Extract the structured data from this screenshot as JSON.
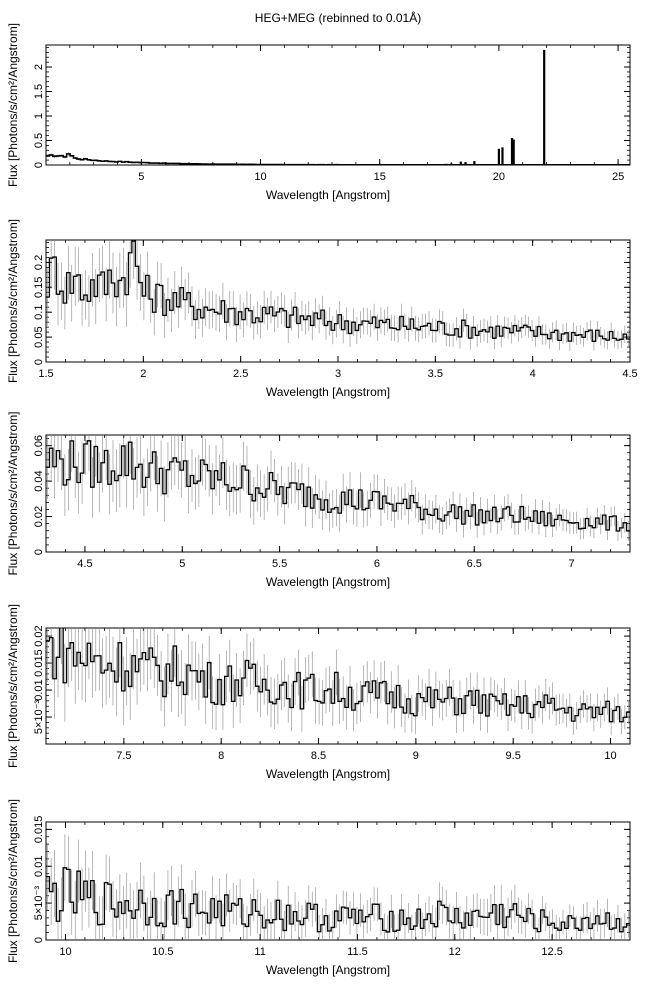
{
  "figure": {
    "title": "HEG+MEG (rebinned to 0.01Å)"
  },
  "chart_data": [
    {
      "type": "line",
      "xlabel": "Wavelength [Angstrom]",
      "ylabel": "Flux [Photons/s/cm²/Angstrom]",
      "xlim": [
        1.0,
        25.5
      ],
      "ylim": [
        0,
        2.45
      ],
      "xticks": [
        5,
        10,
        15,
        20,
        25
      ],
      "xtick_labels": [
        "5",
        "10",
        "15",
        "20",
        "25"
      ],
      "yticks": [
        0,
        0.5,
        1,
        1.5,
        2
      ],
      "ytick_labels": [
        "0",
        "0.5",
        "1",
        "1.5",
        "2"
      ],
      "series": [
        {
          "x": [
            1.1,
            1.3,
            1.5,
            1.6,
            1.8,
            1.95,
            2.2,
            2.5,
            3.0,
            3.5,
            4.0,
            5.0,
            6.0,
            7.0,
            8.0,
            10.0,
            12.0,
            15.0,
            18.0,
            19.0,
            20.0,
            21.0,
            22.0,
            24.0,
            25.5
          ],
          "y": [
            0.17,
            0.2,
            0.19,
            0.17,
            0.18,
            0.24,
            0.14,
            0.12,
            0.1,
            0.08,
            0.07,
            0.05,
            0.035,
            0.025,
            0.018,
            0.01,
            0.006,
            0.004,
            0.005,
            0.005,
            0.004,
            0.005,
            0.004,
            0.004,
            0.004
          ]
        }
      ],
      "lines": [
        {
          "x": 18.0,
          "y": 0.03
        },
        {
          "x": 18.4,
          "y": 0.07
        },
        {
          "x": 18.6,
          "y": 0.06
        },
        {
          "x": 18.97,
          "y": 0.08
        },
        {
          "x": 20.0,
          "y": 0.33
        },
        {
          "x": 20.15,
          "y": 0.36
        },
        {
          "x": 20.55,
          "y": 0.55
        },
        {
          "x": 20.62,
          "y": 0.52
        },
        {
          "x": 21.9,
          "y": 2.35
        }
      ]
    },
    {
      "type": "line",
      "xlabel": "Wavelength [Angstrom]",
      "ylabel": "Flux [Photons/s/cm²/Angstrom]",
      "xlim": [
        1.5,
        4.5
      ],
      "ylim": [
        0,
        0.245
      ],
      "xticks": [
        1.5,
        2,
        2.5,
        3,
        3.5,
        4,
        4.5
      ],
      "xtick_labels": [
        "1.5",
        "2",
        "2.5",
        "3",
        "3.5",
        "4",
        "4.5"
      ],
      "yticks": [
        0,
        0.05,
        0.1,
        0.15,
        0.2
      ],
      "ytick_labels": [
        "0",
        "0.05",
        "0.1",
        "0.15",
        "0.2"
      ],
      "series": [
        {
          "x": [
            1.5,
            1.55,
            1.6,
            1.65,
            1.7,
            1.75,
            1.8,
            1.85,
            1.88,
            1.92,
            1.95,
            2.0,
            2.1,
            2.2,
            2.3,
            2.5,
            2.75,
            3.0,
            3.25,
            3.5,
            3.75,
            4.0,
            4.25,
            4.5
          ],
          "y": [
            0.16,
            0.19,
            0.15,
            0.17,
            0.14,
            0.16,
            0.15,
            0.18,
            0.16,
            0.19,
            0.22,
            0.14,
            0.13,
            0.12,
            0.11,
            0.1,
            0.09,
            0.08,
            0.075,
            0.07,
            0.065,
            0.06,
            0.055,
            0.05
          ]
        }
      ]
    },
    {
      "type": "line",
      "xlabel": "Wavelength [Angstrom]",
      "ylabel": "Flux [Photons/s/cm²/Angstrom]",
      "xlim": [
        4.3,
        7.3
      ],
      "ylim": [
        0,
        0.066
      ],
      "xticks": [
        4.5,
        5,
        5.5,
        6,
        6.5,
        7
      ],
      "xtick_labels": [
        "4.5",
        "5",
        "5.5",
        "6",
        "6.5",
        "7"
      ],
      "yticks": [
        0,
        0.02,
        0.04,
        0.06
      ],
      "ytick_labels": [
        "0",
        "0.02",
        "0.04",
        "0.06"
      ],
      "series": [
        {
          "x": [
            4.3,
            4.4,
            4.5,
            4.6,
            4.7,
            4.8,
            4.9,
            5.0,
            5.1,
            5.2,
            5.3,
            5.4,
            5.5,
            5.6,
            5.7,
            5.8,
            5.9,
            6.0,
            6.1,
            6.2,
            6.3,
            6.4,
            6.5,
            6.6,
            6.7,
            6.8,
            6.9,
            7.0,
            7.1,
            7.2,
            7.3
          ],
          "y": [
            0.052,
            0.05,
            0.05,
            0.048,
            0.053,
            0.047,
            0.045,
            0.044,
            0.042,
            0.041,
            0.04,
            0.038,
            0.034,
            0.033,
            0.032,
            0.03,
            0.029,
            0.028,
            0.027,
            0.025,
            0.023,
            0.022,
            0.021,
            0.02,
            0.021,
            0.019,
            0.018,
            0.018,
            0.017,
            0.016,
            0.016
          ]
        }
      ]
    },
    {
      "type": "line",
      "xlabel": "Wavelength [Angstrom]",
      "ylabel": "Flux [Photons/s/cm²/Angstrom]",
      "xlim": [
        7.1,
        10.1
      ],
      "ylim": [
        0,
        0.0215
      ],
      "xticks": [
        7.5,
        8,
        8.5,
        9,
        9.5,
        10
      ],
      "xtick_labels": [
        "7.5",
        "8",
        "8.5",
        "9",
        "9.5",
        "10"
      ],
      "yticks": [
        0.005,
        0.01,
        0.015,
        0.02
      ],
      "ytick_labels": [
        "5×10⁻³",
        "0.01",
        "0.015",
        "0.02"
      ],
      "series": [
        {
          "x": [
            7.1,
            7.2,
            7.3,
            7.4,
            7.5,
            7.6,
            7.7,
            7.8,
            7.9,
            8.0,
            8.1,
            8.2,
            8.3,
            8.4,
            8.5,
            8.6,
            8.7,
            8.8,
            8.9,
            9.0,
            9.1,
            9.2,
            9.3,
            9.4,
            9.5,
            9.6,
            9.7,
            9.8,
            9.9,
            10.0,
            10.1
          ],
          "y": [
            0.018,
            0.017,
            0.016,
            0.015,
            0.015,
            0.014,
            0.013,
            0.014,
            0.012,
            0.011,
            0.012,
            0.011,
            0.011,
            0.01,
            0.01,
            0.01,
            0.009,
            0.009,
            0.009,
            0.008,
            0.008,
            0.008,
            0.008,
            0.007,
            0.007,
            0.007,
            0.007,
            0.006,
            0.006,
            0.006,
            0.005
          ]
        }
      ]
    },
    {
      "type": "line",
      "xlabel": "Wavelength [Angstrom]",
      "ylabel": "Flux [Photons/s/cm²/Angstrom]",
      "xlim": [
        9.9,
        12.9
      ],
      "ylim": [
        0,
        0.016
      ],
      "xticks": [
        10,
        10.5,
        11,
        11.5,
        12,
        12.5
      ],
      "xtick_labels": [
        "10",
        "10.5",
        "11",
        "11.5",
        "12",
        "12.5"
      ],
      "yticks": [
        0,
        0.005,
        0.01,
        0.015
      ],
      "ytick_labels": [
        "0",
        "5×10⁻³",
        "0.01",
        "0.015"
      ],
      "series": [
        {
          "x": [
            9.9,
            10.0,
            10.1,
            10.2,
            10.3,
            10.4,
            10.5,
            10.6,
            10.7,
            10.8,
            10.9,
            11.0,
            11.1,
            11.2,
            11.3,
            11.4,
            11.5,
            11.6,
            11.7,
            11.8,
            11.9,
            12.0,
            12.1,
            12.2,
            12.3,
            12.4,
            12.5,
            12.6,
            12.7,
            12.8,
            12.9
          ],
          "y": [
            0.006,
            0.006,
            0.0055,
            0.005,
            0.005,
            0.005,
            0.0045,
            0.0045,
            0.004,
            0.004,
            0.0035,
            0.004,
            0.0035,
            0.0035,
            0.003,
            0.003,
            0.003,
            0.003,
            0.003,
            0.0025,
            0.0035,
            0.003,
            0.003,
            0.0035,
            0.0035,
            0.0025,
            0.0025,
            0.002,
            0.003,
            0.0025,
            0.0025
          ]
        }
      ]
    }
  ]
}
